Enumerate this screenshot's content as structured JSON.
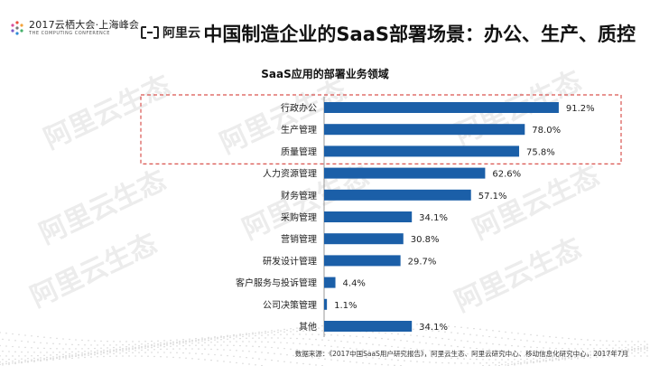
{
  "header": {
    "conference_line1": "2017云栖大会·上海峰会",
    "conference_line2": "THE COMPUTING CONFERENCE",
    "brand": "阿里云",
    "slide_title": "中国制造企业的SaaS部署场景：办公、生产、质控"
  },
  "watermark_text": "阿里云生态",
  "footer": {
    "source": "数据来源：《2017中国SaaS用户研究报告》，阿里云生态、阿里云研究中心、移动信息化研究中心，2017年7月"
  },
  "colors": {
    "bar": "#1b5fa8",
    "highlight_border": "#d9534f",
    "watermark": "#e6e6e6"
  },
  "chart_data": {
    "type": "bar",
    "orientation": "horizontal",
    "title": "SaaS应用的部署业务领域",
    "categories": [
      "行政办公",
      "生产管理",
      "质量管理",
      "人力资源管理",
      "财务管理",
      "采购管理",
      "营销管理",
      "研发设计管理",
      "客户服务与投诉管理",
      "公司决策管理",
      "其他"
    ],
    "values": [
      91.2,
      78.0,
      75.8,
      62.6,
      57.1,
      34.1,
      30.8,
      29.7,
      4.4,
      1.1,
      34.1
    ],
    "value_labels": [
      "91.2%",
      "78.0%",
      "75.8%",
      "62.6%",
      "57.1%",
      "34.1%",
      "30.8%",
      "29.7%",
      "4.4%",
      "1.1%",
      "34.1%"
    ],
    "unit": "%",
    "xlim": [
      0,
      100
    ],
    "highlighted_categories": [
      "行政办公",
      "生产管理",
      "质量管理"
    ],
    "grid": false,
    "legend": "none"
  }
}
